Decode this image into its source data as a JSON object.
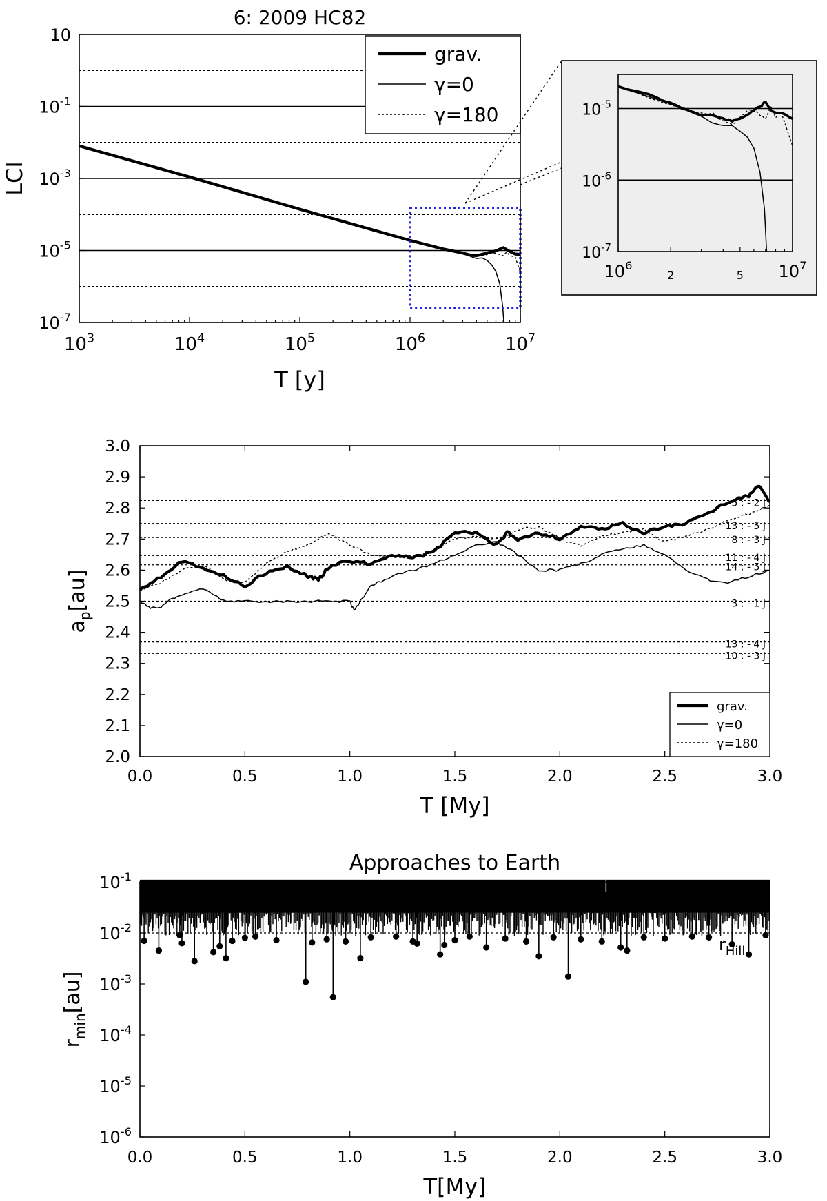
{
  "chart_data": [
    {
      "type": "line",
      "title": "6: 2009 HC82",
      "xlabel": "T [y]",
      "ylabel": "LCI",
      "x_scale": "log",
      "y_scale": "log",
      "xlim": [
        1000,
        10000000
      ],
      "ylim": [
        1e-07,
        10
      ],
      "x_ticks": [
        {
          "value": 1000,
          "base": "10",
          "exp": "3"
        },
        {
          "value": 10000,
          "base": "10",
          "exp": "4"
        },
        {
          "value": 100000,
          "base": "10",
          "exp": "5"
        },
        {
          "value": 1000000,
          "base": "10",
          "exp": "6"
        },
        {
          "value": 10000000,
          "base": "10",
          "exp": "7"
        }
      ],
      "y_ticks": [
        {
          "value": 10,
          "base": "10",
          "exp": ""
        },
        {
          "value": 0.1,
          "base": "10",
          "exp": "-1"
        },
        {
          "value": 0.001,
          "base": "10",
          "exp": "-3"
        },
        {
          "value": 1e-05,
          "base": "10",
          "exp": "-5"
        },
        {
          "value": 1e-07,
          "base": "10",
          "exp": "-7"
        }
      ],
      "grid": false,
      "reference_lines": [
        {
          "y": 1,
          "style": "dotted"
        },
        {
          "y": 0.1,
          "style": "solid"
        },
        {
          "y": 0.01,
          "style": "dotted"
        },
        {
          "y": 0.001,
          "style": "solid"
        },
        {
          "y": 0.0001,
          "style": "dotted"
        },
        {
          "y": 1e-05,
          "style": "solid"
        },
        {
          "y": 1e-06,
          "style": "dotted"
        }
      ],
      "legend_position": "top-right",
      "legend": [
        "grav.",
        "γ=0",
        "γ=180"
      ],
      "series": [
        {
          "name": "grav.",
          "style": "thick",
          "x": [
            1000,
            10000,
            100000,
            1000000,
            2000000,
            3000000,
            3500000,
            4000000,
            5000000,
            6000000,
            7000000,
            8000000,
            9000000,
            10000000
          ],
          "y": [
            0.008,
            0.0011,
            0.00014,
            1.9e-05,
            1.1e-05,
            8.5e-06,
            7.5e-06,
            7.2e-06,
            8.5e-06,
            9.8e-06,
            1.2e-05,
            9.5e-06,
            8e-06,
            7.8e-06
          ]
        },
        {
          "name": "γ=0",
          "style": "thin",
          "x": [
            1000,
            1000000,
            2000000,
            3000000,
            4000000,
            4500000,
            5000000,
            5500000,
            6000000,
            6500000,
            6900000,
            7100000
          ],
          "y": [
            0.008,
            1.9e-05,
            1.1e-05,
            8.2e-06,
            6e-06,
            6.2e-06,
            5.3e-06,
            4e-06,
            2.6e-06,
            1.2e-06,
            3e-07,
            1e-07
          ]
        },
        {
          "name": "γ=180",
          "style": "dotted",
          "x": [
            1000,
            1000000,
            2000000,
            3000000,
            4000000,
            5000000,
            5500000,
            6000000,
            7000000,
            7500000,
            8000000,
            9000000,
            10000000
          ],
          "y": [
            0.008,
            1.9e-05,
            1.08e-05,
            8.4e-06,
            6.8e-06,
            7.7e-06,
            8.5e-06,
            8.4e-06,
            7.2e-06,
            9e-06,
            7.3e-06,
            6.5e-06,
            2.5e-06
          ]
        }
      ],
      "highlight_box": {
        "x": [
          1000000,
          10000000
        ],
        "y": [
          2.5e-07,
          0.00015
        ],
        "color": "#2323e0"
      }
    },
    {
      "type": "line",
      "title": "",
      "xlabel": "",
      "ylabel": "",
      "x_scale": "log",
      "y_scale": "log",
      "xlim": [
        1000000,
        10000000
      ],
      "ylim": [
        1e-07,
        3e-05
      ],
      "background": "#eeeeee",
      "x_ticks": [
        {
          "value": 1000000,
          "base": "10",
          "exp": "6"
        },
        {
          "value": 2000000,
          "base": "2",
          "exp": ""
        },
        {
          "value": 5000000,
          "base": "5",
          "exp": ""
        },
        {
          "value": 10000000,
          "base": "10",
          "exp": "7"
        }
      ],
      "y_ticks": [
        {
          "value": 1e-05,
          "base": "10",
          "exp": "-5"
        },
        {
          "value": 1e-06,
          "base": "10",
          "exp": "-6"
        },
        {
          "value": 1e-07,
          "base": "10",
          "exp": "-7"
        }
      ],
      "reference_lines": [
        {
          "y": 1e-05,
          "style": "solid"
        },
        {
          "y": 1e-06,
          "style": "solid"
        }
      ],
      "series": [
        {
          "name": "grav.",
          "style": "thick",
          "x": [
            1000000,
            1500000,
            2000000,
            2500000,
            3000000,
            3500000,
            4000000,
            4500000,
            5000000,
            5500000,
            6000000,
            6500000,
            7000000,
            7500000,
            8000000,
            9000000,
            10000000
          ],
          "y": [
            2.05e-05,
            1.55e-05,
            1.18e-05,
            9.5e-06,
            8.2e-06,
            8e-06,
            7.2e-06,
            6.7e-06,
            7.2e-06,
            8.2e-06,
            9.5e-06,
            1.05e-05,
            1.25e-05,
            9.5e-06,
            8.8e-06,
            8.5e-06,
            7.2e-06
          ]
        },
        {
          "name": "γ=0",
          "style": "thin",
          "x": [
            1000000,
            2000000,
            3000000,
            3500000,
            4000000,
            4500000,
            5000000,
            5500000,
            6000000,
            6500000,
            6900000,
            7100000
          ],
          "y": [
            2.05e-05,
            1.15e-05,
            7.8e-06,
            6.2e-06,
            5.8e-06,
            5.8e-06,
            4.8e-06,
            4e-06,
            2.8e-06,
            1.3e-06,
            4e-07,
            1e-07
          ]
        },
        {
          "name": "γ=180",
          "style": "dotted",
          "x": [
            1000000,
            2000000,
            2500000,
            3000000,
            3500000,
            4000000,
            4500000,
            5000000,
            5500000,
            6000000,
            6500000,
            7000000,
            7500000,
            8000000,
            8500000,
            9000000,
            10000000
          ],
          "y": [
            2.05e-05,
            1.12e-05,
            9.3e-06,
            8.6e-06,
            8.5e-06,
            6.6e-06,
            6e-06,
            7.4e-06,
            9.2e-06,
            9.8e-06,
            8.2e-06,
            7.2e-06,
            1.05e-05,
            7.5e-06,
            9.2e-06,
            6.5e-06,
            3e-06
          ]
        }
      ]
    },
    {
      "type": "line",
      "title": "",
      "xlabel": "T [My]",
      "ylabel_main": "a",
      "ylabel_sub": "p",
      "ylabel_tail": "[au]",
      "xlim": [
        0,
        3
      ],
      "ylim": [
        2.0,
        3.0
      ],
      "x_ticks": [
        "0.0",
        "0.5",
        "1.0",
        "1.5",
        "2.0",
        "2.5",
        "3.0"
      ],
      "y_ticks": [
        "2.0",
        "2.1",
        "2.2",
        "2.3",
        "2.4",
        "2.5",
        "2.6",
        "2.7",
        "2.8",
        "2.9",
        "3.0"
      ],
      "grid": false,
      "legend_position": "bottom-right",
      "legend": [
        "grav.",
        "γ=0",
        "γ=180"
      ],
      "resonances": [
        {
          "label": "5 : - 2 J",
          "y": 2.824
        },
        {
          "label": "13 : - 5 J",
          "y": 2.75
        },
        {
          "label": "8 : - 3 J",
          "y": 2.705
        },
        {
          "label": "11 : - 4 J",
          "y": 2.647
        },
        {
          "label": "14 : - 5 J",
          "y": 2.617
        },
        {
          "label": "3 : - 1 J",
          "y": 2.5
        },
        {
          "label": "13 : - 4 J",
          "y": 2.369
        },
        {
          "label": "10 : - 3 J",
          "y": 2.332
        }
      ],
      "series": [
        {
          "name": "grav.",
          "style": "thick",
          "x": [
            0,
            0.1,
            0.2,
            0.3,
            0.4,
            0.5,
            0.6,
            0.7,
            0.8,
            0.85,
            0.9,
            1.0,
            1.1,
            1.2,
            1.3,
            1.4,
            1.5,
            1.6,
            1.7,
            1.75,
            1.8,
            1.9,
            2.0,
            2.1,
            2.2,
            2.3,
            2.4,
            2.5,
            2.6,
            2.7,
            2.8,
            2.9,
            2.95,
            3.0
          ],
          "y": [
            2.54,
            2.58,
            2.63,
            2.61,
            2.58,
            2.55,
            2.59,
            2.61,
            2.58,
            2.57,
            2.61,
            2.63,
            2.62,
            2.65,
            2.64,
            2.66,
            2.72,
            2.72,
            2.68,
            2.72,
            2.7,
            2.72,
            2.7,
            2.74,
            2.73,
            2.75,
            2.72,
            2.74,
            2.75,
            2.78,
            2.82,
            2.84,
            2.87,
            2.82
          ]
        },
        {
          "name": "γ=0",
          "style": "thin",
          "x": [
            0,
            0.05,
            0.1,
            0.15,
            0.2,
            0.3,
            0.4,
            0.5,
            0.6,
            0.7,
            0.8,
            0.9,
            1.0,
            1.02,
            1.05,
            1.1,
            1.2,
            1.3,
            1.4,
            1.5,
            1.6,
            1.7,
            1.8,
            1.9,
            2.0,
            2.1,
            2.2,
            2.3,
            2.4,
            2.5,
            2.6,
            2.7,
            2.8,
            2.9,
            3.0
          ],
          "y": [
            2.5,
            2.48,
            2.48,
            2.51,
            2.52,
            2.54,
            2.5,
            2.5,
            2.5,
            2.5,
            2.5,
            2.5,
            2.5,
            2.47,
            2.5,
            2.55,
            2.58,
            2.6,
            2.62,
            2.65,
            2.68,
            2.69,
            2.65,
            2.6,
            2.6,
            2.62,
            2.65,
            2.67,
            2.68,
            2.65,
            2.6,
            2.57,
            2.56,
            2.58,
            2.6
          ]
        },
        {
          "name": "γ=180",
          "style": "dotted",
          "x": [
            0,
            0.1,
            0.2,
            0.3,
            0.4,
            0.5,
            0.6,
            0.7,
            0.8,
            0.9,
            1.0,
            1.1,
            1.2,
            1.3,
            1.4,
            1.5,
            1.6,
            1.7,
            1.8,
            1.9,
            2.0,
            2.1,
            2.2,
            2.3,
            2.4,
            2.5,
            2.6,
            2.7,
            2.8,
            2.9,
            3.0
          ],
          "y": [
            2.53,
            2.56,
            2.6,
            2.62,
            2.57,
            2.56,
            2.62,
            2.66,
            2.68,
            2.72,
            2.68,
            2.65,
            2.64,
            2.64,
            2.66,
            2.7,
            2.71,
            2.7,
            2.73,
            2.74,
            2.7,
            2.68,
            2.71,
            2.72,
            2.73,
            2.69,
            2.71,
            2.73,
            2.76,
            2.78,
            2.81
          ]
        }
      ]
    },
    {
      "type": "scatter",
      "title": "Approaches to Earth",
      "xlabel": "T[My]",
      "ylabel_main": "r",
      "ylabel_sub": "min",
      "ylabel_tail": "[au]",
      "x_scale": "linear",
      "y_scale": "log",
      "xlim": [
        0,
        3
      ],
      "ylim": [
        1e-06,
        0.1
      ],
      "x_ticks": [
        "0.0",
        "0.5",
        "1.0",
        "1.5",
        "2.0",
        "2.5",
        "3.0"
      ],
      "y_ticks": [
        {
          "value": 0.1,
          "base": "10",
          "exp": "-1"
        },
        {
          "value": 0.01,
          "base": "10",
          "exp": "-2"
        },
        {
          "value": 0.001,
          "base": "10",
          "exp": "-3"
        },
        {
          "value": 0.0001,
          "base": "10",
          "exp": "-4"
        },
        {
          "value": 1e-05,
          "base": "10",
          "exp": "-5"
        },
        {
          "value": 1e-06,
          "base": "10",
          "exp": "-6"
        }
      ],
      "reference_line": {
        "y": 0.01,
        "label_main": "r",
        "label_sub": "Hill",
        "style": "dotted"
      },
      "dense_band": {
        "y": [
          0.025,
          0.11
        ]
      },
      "points": [
        {
          "x": 0.02,
          "y": 0.007
        },
        {
          "x": 0.09,
          "y": 0.0045
        },
        {
          "x": 0.2,
          "y": 0.0063
        },
        {
          "x": 0.19,
          "y": 0.009
        },
        {
          "x": 0.26,
          "y": 0.0028
        },
        {
          "x": 0.35,
          "y": 0.0042
        },
        {
          "x": 0.38,
          "y": 0.0055
        },
        {
          "x": 0.41,
          "y": 0.0032
        },
        {
          "x": 0.44,
          "y": 0.007
        },
        {
          "x": 0.5,
          "y": 0.008
        },
        {
          "x": 0.55,
          "y": 0.0085
        },
        {
          "x": 0.65,
          "y": 0.0072
        },
        {
          "x": 0.79,
          "y": 0.0011
        },
        {
          "x": 0.82,
          "y": 0.0065
        },
        {
          "x": 0.89,
          "y": 0.0075
        },
        {
          "x": 0.92,
          "y": 0.00055
        },
        {
          "x": 0.98,
          "y": 0.0068
        },
        {
          "x": 1.05,
          "y": 0.0032
        },
        {
          "x": 1.1,
          "y": 0.0082
        },
        {
          "x": 1.22,
          "y": 0.0085
        },
        {
          "x": 1.3,
          "y": 0.0068
        },
        {
          "x": 1.32,
          "y": 0.0062
        },
        {
          "x": 1.43,
          "y": 0.0038
        },
        {
          "x": 1.45,
          "y": 0.0058
        },
        {
          "x": 1.5,
          "y": 0.0072
        },
        {
          "x": 1.57,
          "y": 0.0085
        },
        {
          "x": 1.65,
          "y": 0.0052
        },
        {
          "x": 1.74,
          "y": 0.0078
        },
        {
          "x": 1.84,
          "y": 0.0068
        },
        {
          "x": 1.9,
          "y": 0.0035
        },
        {
          "x": 1.97,
          "y": 0.0082
        },
        {
          "x": 2.04,
          "y": 0.0014
        },
        {
          "x": 2.1,
          "y": 0.0075
        },
        {
          "x": 2.2,
          "y": 0.0068
        },
        {
          "x": 2.29,
          "y": 0.0052
        },
        {
          "x": 2.32,
          "y": 0.0045
        },
        {
          "x": 2.4,
          "y": 0.0082
        },
        {
          "x": 2.5,
          "y": 0.0078
        },
        {
          "x": 2.63,
          "y": 0.0085
        },
        {
          "x": 2.71,
          "y": 0.0082
        },
        {
          "x": 2.82,
          "y": 0.006
        },
        {
          "x": 2.9,
          "y": 0.0038
        },
        {
          "x": 2.98,
          "y": 0.009
        }
      ]
    }
  ]
}
